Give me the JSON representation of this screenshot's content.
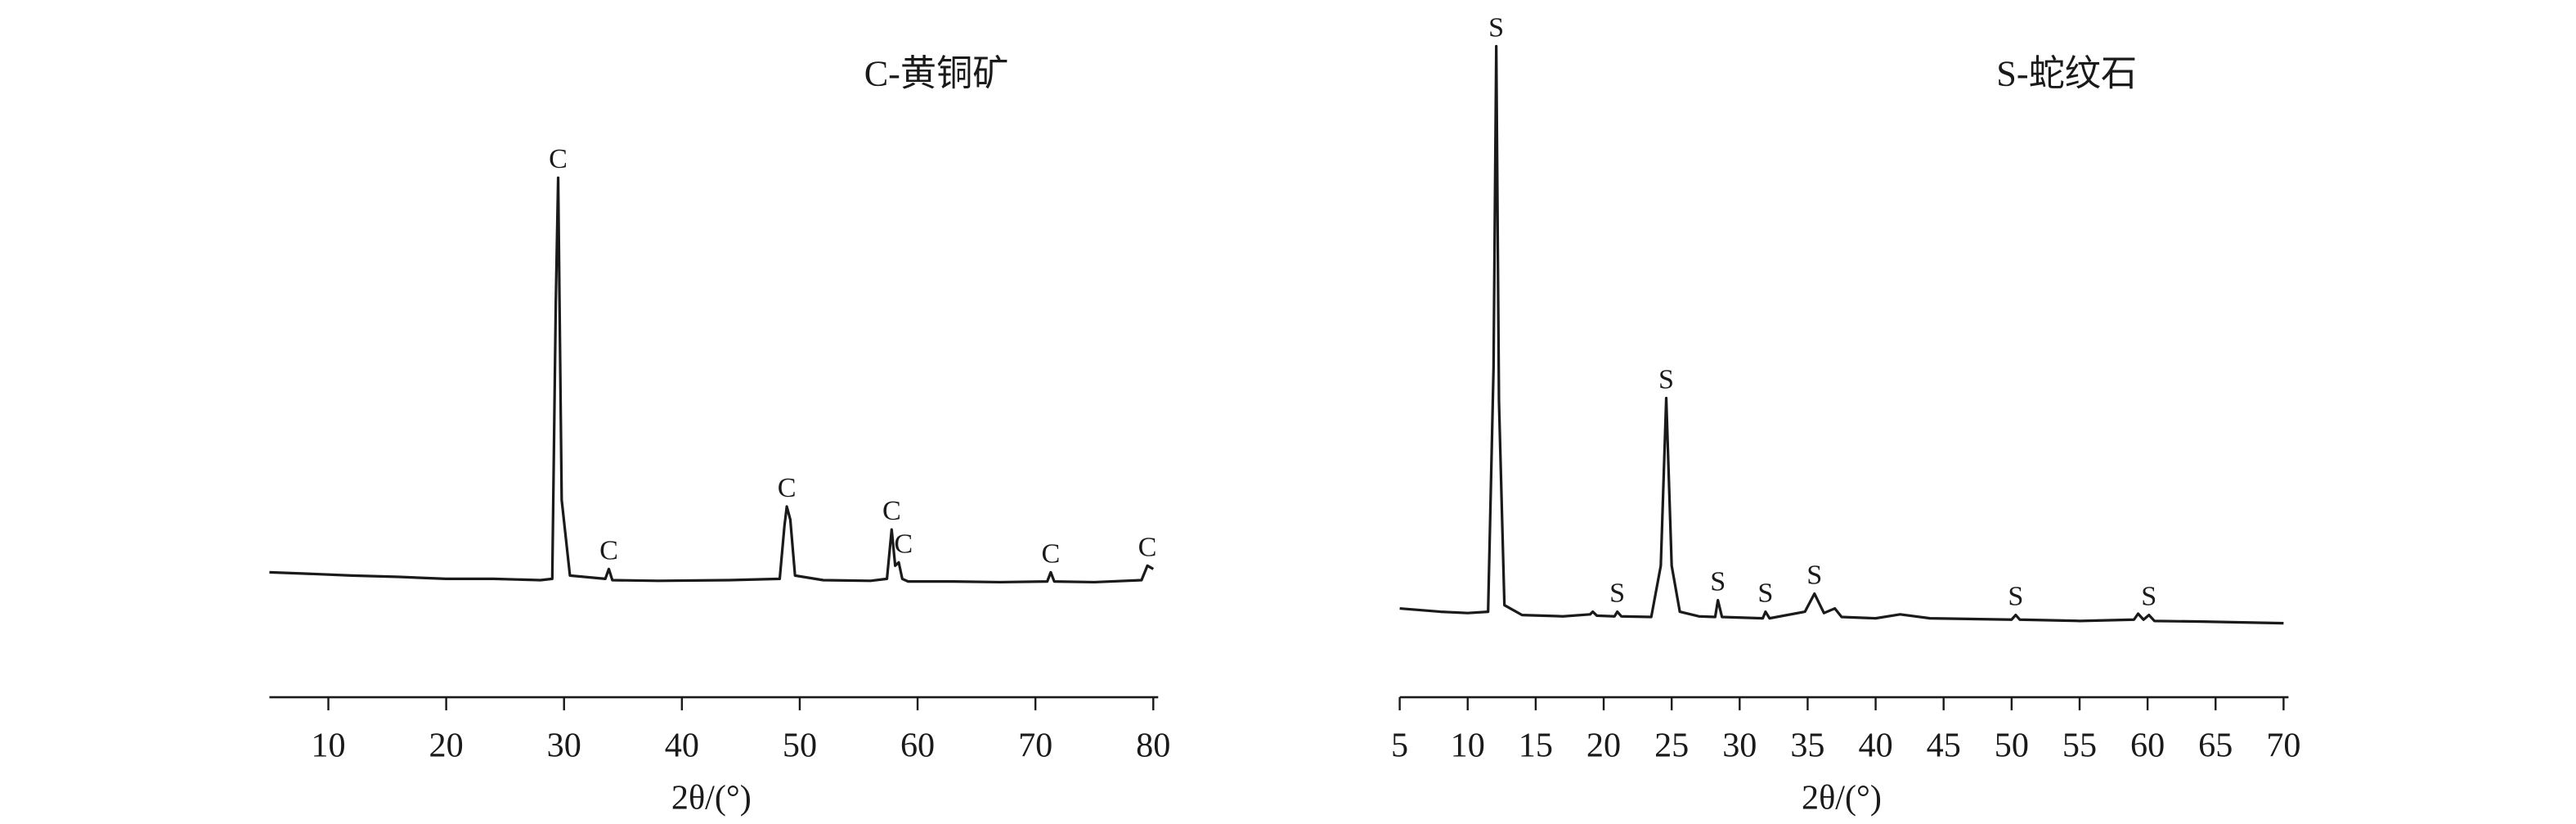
{
  "chart_data": [
    {
      "type": "line",
      "title": "C-黄铜矿",
      "xlabel": "2θ/(°)",
      "x": [
        5,
        8,
        12,
        16,
        20,
        24,
        28,
        29.0,
        29.3,
        29.5,
        29.8,
        30.5,
        33.5,
        33.8,
        34.1,
        38,
        44,
        48.3,
        48.7,
        48.9,
        49.2,
        49.6,
        52,
        56,
        57.4,
        57.8,
        58.1,
        58.4,
        58.7,
        59.2,
        63,
        67,
        71,
        71.3,
        71.6,
        75,
        79,
        79.5,
        80
      ],
      "series": [
        {
          "color": "#1a1a1a",
          "values": [
            19,
            18.8,
            18.5,
            18.3,
            18,
            18,
            17.8,
            18,
            60,
            79,
            30,
            18.5,
            18,
            19.5,
            17.8,
            17.7,
            17.8,
            18,
            26,
            29,
            27,
            18.5,
            17.8,
            17.7,
            18,
            25.5,
            20,
            20.5,
            18,
            17.6,
            17.6,
            17.5,
            17.6,
            19,
            17.6,
            17.5,
            17.8,
            20,
            19.5
          ]
        }
      ],
      "annotations": [
        {
          "text": "C",
          "x": 29.5
        },
        {
          "text": "C",
          "x": 33.8
        },
        {
          "text": "C",
          "x": 48.9
        },
        {
          "text": "C",
          "x": 57.8
        },
        {
          "text": "C",
          "x": 58.8
        },
        {
          "text": "C",
          "x": 71.3
        },
        {
          "text": "C",
          "x": 79.5
        }
      ],
      "xlim": [
        5,
        80
      ],
      "xticks": [
        10,
        20,
        30,
        40,
        50,
        60,
        70,
        80
      ],
      "ylim": [
        0,
        100
      ]
    },
    {
      "type": "line",
      "title": "S-蛇纹石",
      "xlabel": "2θ/(°)",
      "x": [
        5,
        8,
        10,
        11.5,
        11.9,
        12.1,
        12.3,
        12.7,
        14,
        17,
        19,
        19.2,
        19.5,
        20.8,
        21,
        21.3,
        23.5,
        24.2,
        24.6,
        25,
        25.6,
        27,
        28.2,
        28.4,
        28.7,
        31.7,
        31.9,
        32.2,
        34.8,
        35.5,
        36.2,
        37,
        37.5,
        40,
        41.8,
        44,
        50,
        50.3,
        50.6,
        55,
        59,
        59.3,
        59.7,
        60.1,
        60.5,
        64,
        70
      ],
      "series": [
        {
          "color": "#1a1a1a",
          "values": [
            13.5,
            13,
            12.8,
            13,
            50,
            99,
            45,
            14,
            12.5,
            12.3,
            12.6,
            13,
            12.4,
            12.3,
            13,
            12.3,
            12.2,
            20,
            45.5,
            20,
            13,
            12.3,
            12.2,
            14.75,
            12.2,
            12,
            13,
            12,
            13,
            15.75,
            12.8,
            13.5,
            12.2,
            12,
            12.6,
            12,
            11.8,
            12.5,
            11.8,
            11.6,
            11.8,
            12.7,
            11.8,
            12.5,
            11.6,
            11.5,
            11.25
          ]
        }
      ],
      "annotations": [
        {
          "text": "S",
          "x": 12.1
        },
        {
          "text": "S",
          "x": 21
        },
        {
          "text": "S",
          "x": 24.6
        },
        {
          "text": "S",
          "x": 28.4
        },
        {
          "text": "S",
          "x": 31.9
        },
        {
          "text": "S",
          "x": 35.5
        },
        {
          "text": "S",
          "x": 50.3
        },
        {
          "text": "S",
          "x": 60.1
        }
      ],
      "xlim": [
        5,
        70
      ],
      "xticks": [
        5,
        10,
        15,
        20,
        25,
        30,
        35,
        40,
        45,
        50,
        55,
        60,
        65,
        70
      ],
      "ylim": [
        0,
        100
      ]
    }
  ]
}
